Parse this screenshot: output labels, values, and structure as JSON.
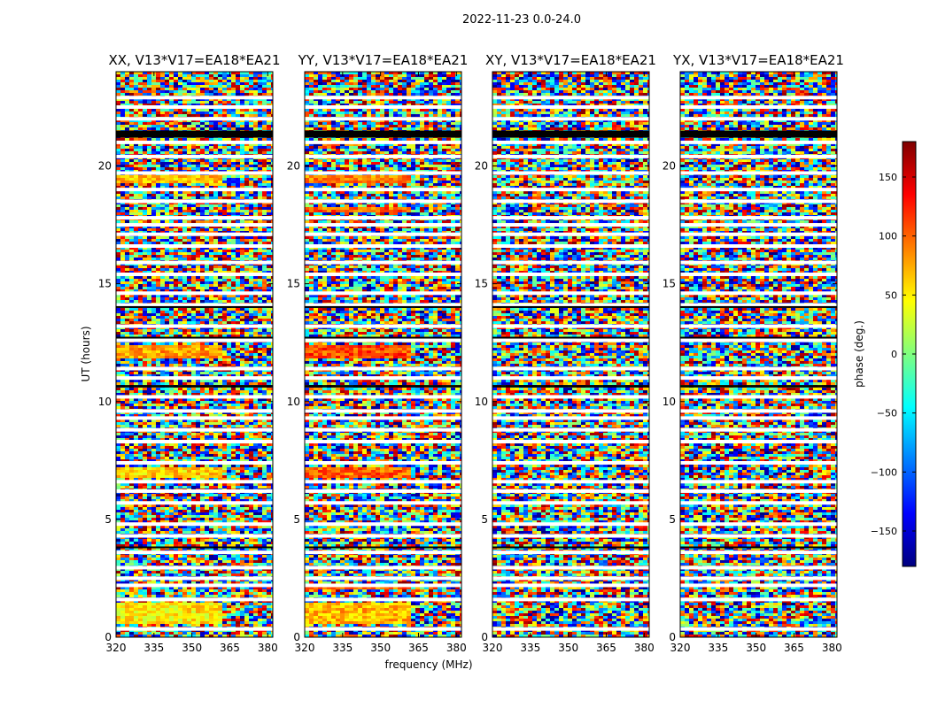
{
  "figure": {
    "suptitle": "2022-11-23 0.0-24.0"
  },
  "chart_data": {
    "type": "heatmap",
    "xlabel": "frequency (MHz)",
    "ylabel": "UT (hours)",
    "xlim": [
      320,
      382
    ],
    "ylim": [
      0,
      24
    ],
    "x_ticks": [
      320,
      335,
      350,
      365,
      380
    ],
    "y_ticks": [
      0,
      5,
      10,
      15,
      20
    ],
    "colorbar": {
      "label": "phase (deg.)",
      "colormap": "jet",
      "range": [
        -180,
        180
      ],
      "ticks": [
        150,
        100,
        50,
        0,
        -50,
        -100,
        -150
      ],
      "tick_labels": [
        "150",
        "100",
        "50",
        "0",
        "−50",
        "−100",
        "−150"
      ],
      "colors": [
        "#00007f",
        "#0000ff",
        "#007fff",
        "#00ffff",
        "#7fff7f",
        "#ffff00",
        "#ff7f00",
        "#ff0000",
        "#7f0000"
      ]
    },
    "panels": [
      {
        "title": "XX, V13*V17=EA18*EA21",
        "bias_bands": [
          [
            0.6,
            1.5,
            50
          ],
          [
            6.8,
            7.2,
            60
          ],
          [
            11.8,
            12.4,
            80
          ],
          [
            19.3,
            19.6,
            70
          ]
        ]
      },
      {
        "title": "YY, V13*V17=EA18*EA21",
        "bias_bands": [
          [
            0.6,
            1.5,
            70
          ],
          [
            2.0,
            2.2,
            100
          ],
          [
            6.8,
            7.2,
            100
          ],
          [
            11.8,
            12.4,
            110
          ],
          [
            18.0,
            18.3,
            100
          ],
          [
            19.3,
            19.6,
            90
          ]
        ]
      },
      {
        "title": "XY, V13*V17=EA18*EA21",
        "bias_bands": []
      },
      {
        "title": "YX, V13*V17=EA18*EA21",
        "bias_bands": []
      }
    ],
    "blank_rows": [
      0.35,
      1.6,
      2.2,
      2.5,
      2.95,
      3.6,
      4.3,
      4.8,
      5.7,
      6.2,
      6.6,
      7.4,
      8.3,
      8.8,
      9.3,
      9.6,
      10.2,
      11.0,
      11.4,
      12.6,
      13.2,
      14.1,
      14.6,
      15.4,
      15.9,
      16.6,
      17.1,
      17.5,
      17.8,
      18.5,
      19.0,
      19.7,
      20.4,
      21.0,
      21.4,
      22.0,
      22.5,
      22.9
    ],
    "black_rows": [
      [
        21.2,
        21.5
      ],
      [
        10.6,
        10.7
      ],
      [
        14.0,
        14.05
      ],
      [
        12.7,
        12.75
      ],
      [
        3.8,
        3.85
      ]
    ]
  }
}
